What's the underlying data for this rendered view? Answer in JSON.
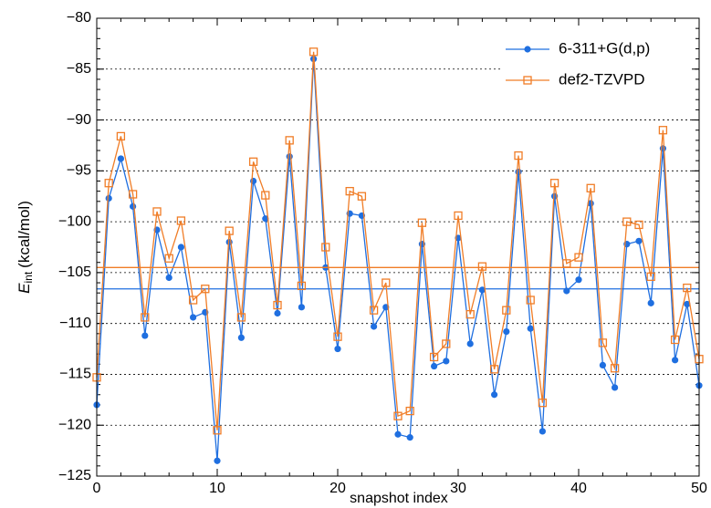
{
  "chart_data": {
    "type": "line",
    "xlabel": "snapshot index",
    "ylabel": "E",
    "ylabel_subscript": "int",
    "ylabel_unit": "(kcal/mol)",
    "x": [
      0,
      1,
      2,
      3,
      4,
      5,
      6,
      7,
      8,
      9,
      10,
      11,
      12,
      13,
      14,
      15,
      16,
      17,
      18,
      19,
      20,
      21,
      22,
      23,
      24,
      25,
      26,
      27,
      28,
      29,
      30,
      31,
      32,
      33,
      34,
      35,
      36,
      37,
      38,
      39,
      40,
      41,
      42,
      43,
      44,
      45,
      46,
      47,
      48,
      49,
      50
    ],
    "series": [
      {
        "name": "6-311+G(d,p)",
        "color": "#1f6fe0",
        "marker": "circle",
        "mean": -106.6,
        "values": [
          -118,
          -97.7,
          -93.8,
          -98.5,
          -111.2,
          -100.8,
          -105.5,
          -102.5,
          -109.4,
          -108.9,
          -123.5,
          -102,
          -111.4,
          -96,
          -99.7,
          -109,
          -93.6,
          -108.4,
          -84,
          -104.5,
          -112.5,
          -99.2,
          -99.4,
          -110.3,
          -108.4,
          -120.9,
          -121.2,
          -102.2,
          -114.2,
          -113.7,
          -101.6,
          -112,
          -106.7,
          -117,
          -110.8,
          -95.1,
          -110.5,
          -120.6,
          -97.5,
          -106.8,
          -105.7,
          -98.2,
          -114.1,
          -116.3,
          -102.2,
          -101.9,
          -108,
          -92.8,
          -113.6,
          -108.1,
          -116.1
        ]
      },
      {
        "name": "def2-TZVPD",
        "color": "#f07d27",
        "marker": "square",
        "mean": -104.5,
        "values": [
          -115.3,
          -96.2,
          -91.6,
          -97.3,
          -109.4,
          -99,
          -103.6,
          -99.9,
          -107.7,
          -106.6,
          -120.5,
          -100.9,
          -109.4,
          -94.1,
          -97.4,
          -108.2,
          -92,
          -106.3,
          -83.3,
          -102.5,
          -111.3,
          -97,
          -97.5,
          -108.7,
          -106,
          -119.1,
          -118.6,
          -100.1,
          -113.3,
          -112,
          -99.4,
          -109.1,
          -104.4,
          -114.5,
          -108.7,
          -93.5,
          -107.7,
          -117.8,
          -96.2,
          -104.1,
          -103.5,
          -96.7,
          -111.9,
          -114.4,
          -100,
          -100.3,
          -105.4,
          -91,
          -111.6,
          -106.5,
          -113.5
        ]
      }
    ],
    "xlim": [
      0,
      50
    ],
    "xticks": [
      0,
      10,
      20,
      30,
      40,
      50
    ],
    "ylim": [
      -125,
      -80
    ],
    "yticks": [
      {
        "value": -125,
        "label": "−125"
      },
      {
        "value": -120,
        "label": "−120"
      },
      {
        "value": -115,
        "label": "−115"
      },
      {
        "value": -110,
        "label": "−110"
      },
      {
        "value": -105,
        "label": "−105"
      },
      {
        "value": -100,
        "label": "−100"
      },
      {
        "value": -95,
        "label": "−95"
      },
      {
        "value": -90,
        "label": "−90"
      },
      {
        "value": -85,
        "label": "−85"
      },
      {
        "value": -80,
        "label": "−80"
      }
    ],
    "grid": true,
    "legend": "upper right"
  }
}
